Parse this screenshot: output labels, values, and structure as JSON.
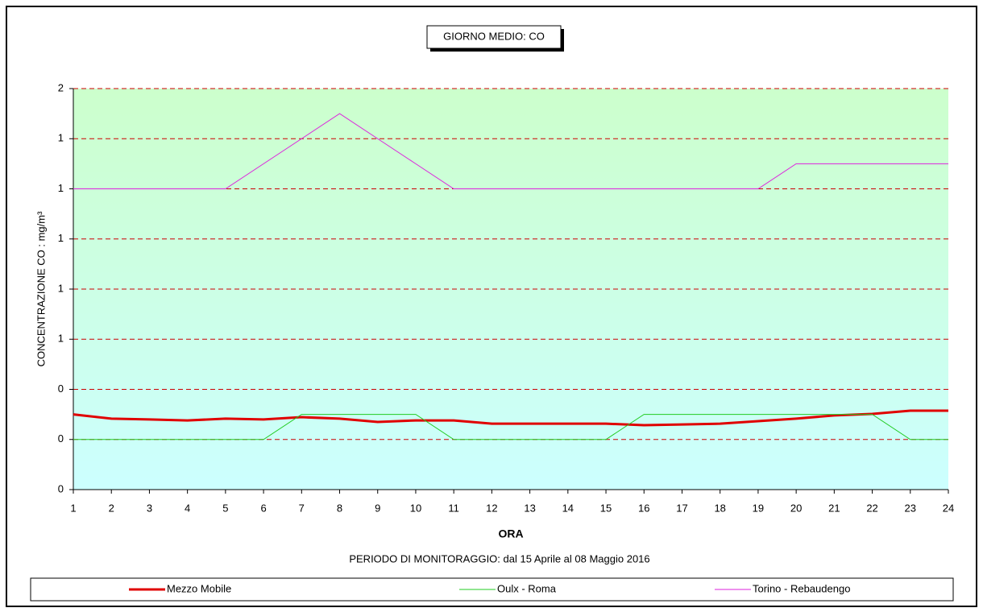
{
  "chart_data": {
    "type": "line",
    "title": "GIORNO MEDIO: CO",
    "subtitle": "PERIODO DI MONITORAGGIO: dal 15 Aprile al 08 Maggio 2016",
    "x_label": "ORA",
    "y_label": "CONCENTRAZIONE CO :  mg/m³",
    "x": [
      1,
      2,
      3,
      4,
      5,
      6,
      7,
      8,
      9,
      10,
      11,
      12,
      13,
      14,
      15,
      16,
      17,
      18,
      19,
      20,
      21,
      22,
      23,
      24
    ],
    "xlim": [
      1,
      24
    ],
    "xticks": [
      1,
      2,
      3,
      4,
      5,
      6,
      7,
      8,
      9,
      10,
      11,
      12,
      13,
      14,
      15,
      16,
      17,
      18,
      19,
      20,
      21,
      22,
      23,
      24
    ],
    "ylim": [
      0,
      1.6
    ],
    "yticks": [
      0,
      {
        "value": 0.2,
        "label": "0"
      },
      {
        "value": 0.4,
        "label": "0"
      },
      {
        "value": 0.6,
        "label": "1"
      },
      {
        "value": 0.8,
        "label": "1"
      },
      1,
      {
        "value": 1.2,
        "label": "1"
      },
      {
        "value": 1.4,
        "label": "1"
      },
      {
        "value": 1.6,
        "label": "2"
      }
    ],
    "grid": true,
    "series": [
      {
        "name": "Mezzo Mobile",
        "color": "#e00000",
        "width": 3,
        "values": [
          0.3,
          0.283,
          0.28,
          0.276,
          0.283,
          0.28,
          0.289,
          0.283,
          0.27,
          0.276,
          0.276,
          0.263,
          0.263,
          0.263,
          0.263,
          0.257,
          0.26,
          0.263,
          0.273,
          0.283,
          0.296,
          0.302,
          0.315,
          0.315
        ]
      },
      {
        "name": "Oulx - Roma",
        "color": "#22cc22",
        "width": 1,
        "values": [
          0.2,
          0.2,
          0.2,
          0.2,
          0.2,
          0.2,
          0.3,
          0.3,
          0.3,
          0.3,
          0.2,
          0.2,
          0.2,
          0.2,
          0.2,
          0.3,
          0.3,
          0.3,
          0.3,
          0.3,
          0.3,
          0.3,
          0.2,
          0.2
        ]
      },
      {
        "name": "Torino - Rebaudengo",
        "color": "#dd22dd",
        "width": 1,
        "values": [
          1.2,
          1.2,
          1.2,
          1.2,
          1.2,
          1.3,
          1.4,
          1.5,
          1.4,
          1.3,
          1.2,
          1.2,
          1.2,
          1.2,
          1.2,
          1.2,
          1.2,
          1.2,
          1.2,
          1.3,
          1.3,
          1.3,
          1.3,
          1.3
        ]
      }
    ]
  }
}
